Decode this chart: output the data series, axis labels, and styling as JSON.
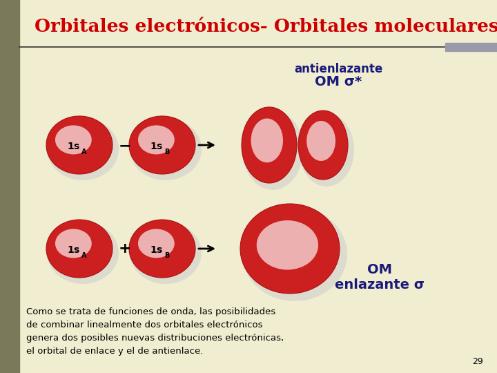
{
  "background_color": "#f0edd0",
  "title": "Orbitales electrónicos- Orbitales moleculares",
  "title_color": "#cc0000",
  "title_fontsize": 19,
  "left_bar_color": "#7a7a5a",
  "top_bar_color": "#9999aa",
  "antienlazante_text": "antienlazante",
  "om_star_text": "OM σ*",
  "om_text": "OM",
  "enlazante_text": "enlazante σ",
  "bottom_text_line1": "Como se trata de funciones de onda, las posibilidades",
  "bottom_text_line2": "de combinar linealmente dos orbitales electrónicos",
  "bottom_text_line3": "genera dos posibles nuevas distribuciones electrónicas,",
  "bottom_text_line4": "el orbital de enlace y el de antienlace.",
  "page_number": "29",
  "dark_blue": "#1a1a7a",
  "red_orbital": "#cc2020",
  "red_dark": "#aa1010"
}
